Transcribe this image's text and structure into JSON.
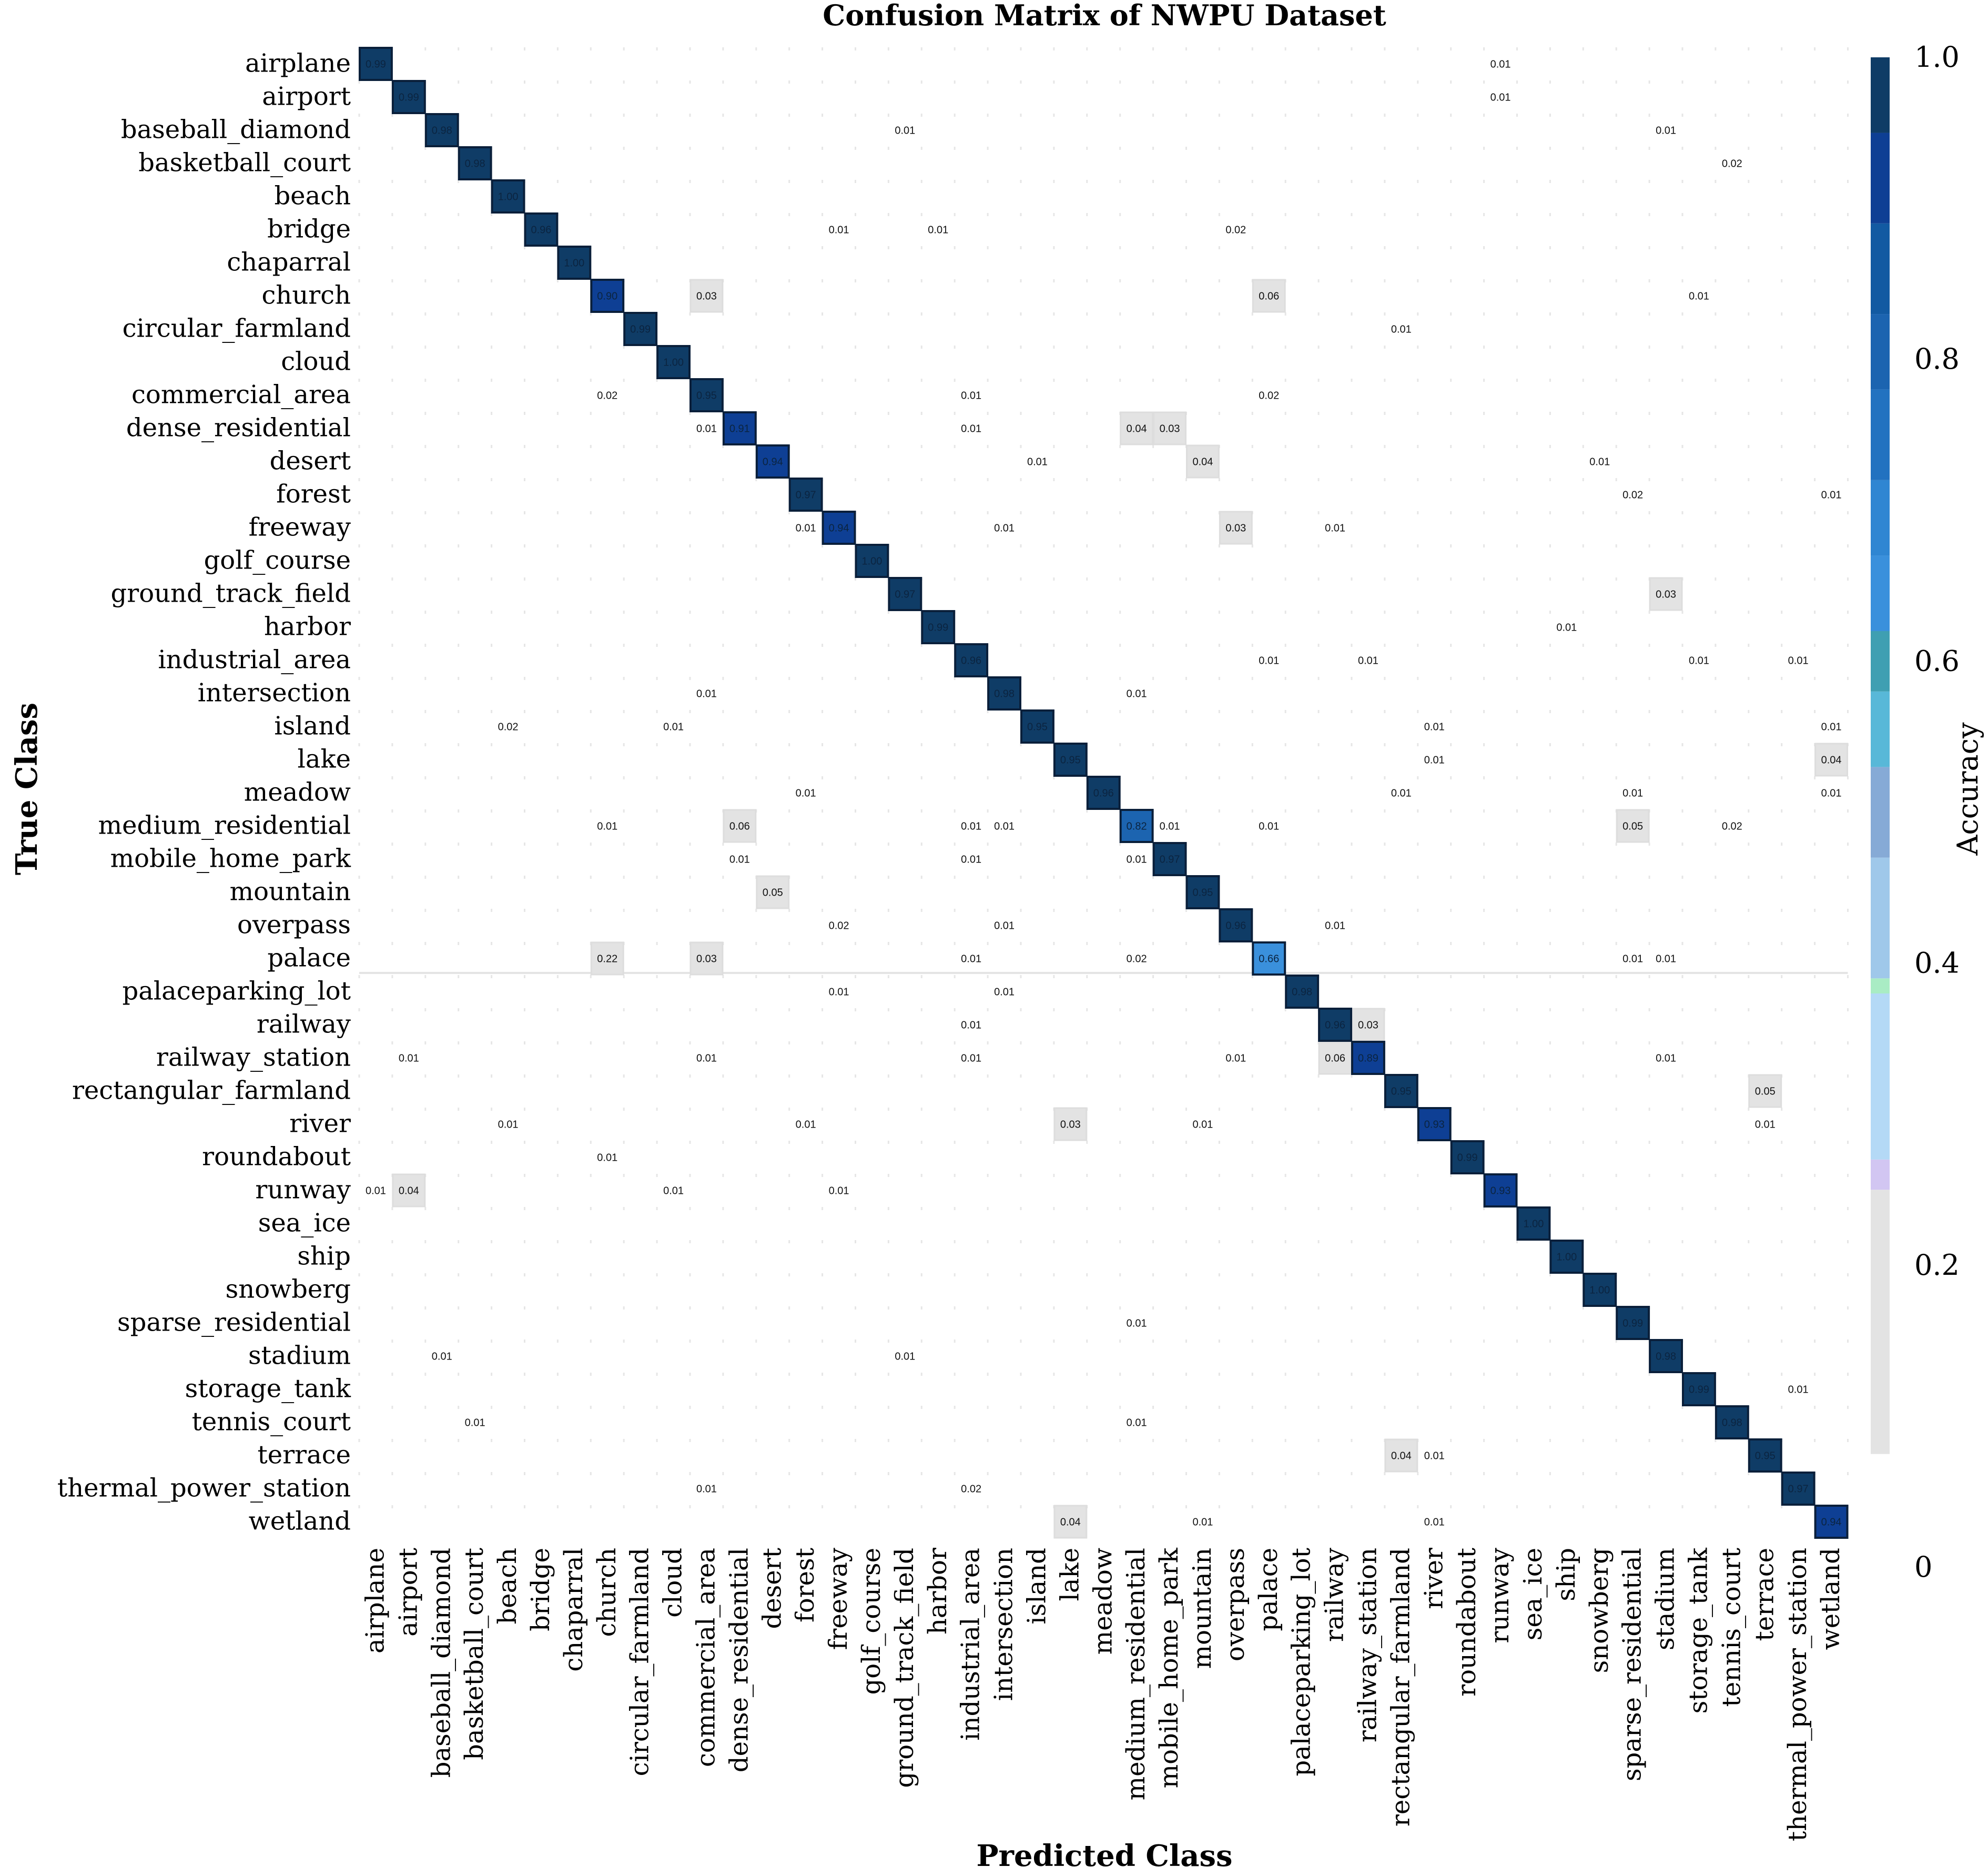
{
  "chart_data": {
    "type": "heatmap",
    "title": "Confusion Matrix of NWPU Dataset",
    "xlabel": "Predicted Class",
    "ylabel": "True Class",
    "classes": [
      "airplane",
      "airport",
      "baseball_diamond",
      "basketball_court",
      "beach",
      "bridge",
      "chaparral",
      "church",
      "circular_farmland",
      "cloud",
      "commercial_area",
      "dense_residential",
      "desert",
      "forest",
      "freeway",
      "golf_course",
      "ground_track_field",
      "harbor",
      "industrial_area",
      "intersection",
      "island",
      "lake",
      "meadow",
      "medium_residential",
      "mobile_home_park",
      "mountain",
      "overpass",
      "palace",
      "palaceparking_lot",
      "railway",
      "railway_station",
      "rectangular_farmland",
      "river",
      "roundabout",
      "runway",
      "sea_ice",
      "ship",
      "snowberg",
      "sparse_residential",
      "stadium",
      "storage_tank",
      "tennis_court",
      "terrace",
      "thermal_power_station",
      "wetland"
    ],
    "diagonal": [
      "0.99",
      "0.99",
      "0.98",
      "0.98",
      "1.00",
      "0.96",
      "1.00",
      "0.90",
      "0.99",
      "1.00",
      "0.95",
      "0.91",
      "0.94",
      "0.97",
      "0.94",
      "1.00",
      "0.97",
      "0.99",
      "0.96",
      "0.98",
      "0.95",
      "0.95",
      "0.96",
      "0.82",
      "0.97",
      "0.95",
      "0.96",
      "0.66",
      "0.98",
      "0.96",
      "0.89",
      "0.95",
      "0.93",
      "0.99",
      "0.93",
      "1.00",
      "1.00",
      "1.00",
      "0.99",
      "0.98",
      "0.99",
      "0.98",
      "0.95",
      "0.97",
      "0.94"
    ],
    "off_diagonal": [
      [
        0,
        34,
        "0.01"
      ],
      [
        1,
        34,
        "0.01"
      ],
      [
        2,
        16,
        "0.01"
      ],
      [
        2,
        39,
        "0.01"
      ],
      [
        3,
        41,
        "0.02"
      ],
      [
        5,
        14,
        "0.01"
      ],
      [
        5,
        17,
        "0.01"
      ],
      [
        5,
        26,
        "0.02"
      ],
      [
        7,
        10,
        "0.03"
      ],
      [
        7,
        27,
        "0.06"
      ],
      [
        7,
        40,
        "0.01"
      ],
      [
        8,
        31,
        "0.01"
      ],
      [
        10,
        7,
        "0.02"
      ],
      [
        10,
        18,
        "0.01"
      ],
      [
        10,
        27,
        "0.02"
      ],
      [
        11,
        10,
        "0.01"
      ],
      [
        11,
        18,
        "0.01"
      ],
      [
        11,
        23,
        "0.04"
      ],
      [
        11,
        24,
        "0.03"
      ],
      [
        12,
        20,
        "0.01"
      ],
      [
        12,
        25,
        "0.04"
      ],
      [
        12,
        37,
        "0.01"
      ],
      [
        13,
        38,
        "0.02"
      ],
      [
        13,
        44,
        "0.01"
      ],
      [
        14,
        13,
        "0.01"
      ],
      [
        14,
        19,
        "0.01"
      ],
      [
        14,
        26,
        "0.03"
      ],
      [
        14,
        29,
        "0.01"
      ],
      [
        16,
        39,
        "0.03"
      ],
      [
        17,
        36,
        "0.01"
      ],
      [
        18,
        27,
        "0.01"
      ],
      [
        18,
        30,
        "0.01"
      ],
      [
        18,
        40,
        "0.01"
      ],
      [
        18,
        43,
        "0.01"
      ],
      [
        19,
        10,
        "0.01"
      ],
      [
        19,
        23,
        "0.01"
      ],
      [
        20,
        4,
        "0.02"
      ],
      [
        20,
        9,
        "0.01"
      ],
      [
        20,
        32,
        "0.01"
      ],
      [
        20,
        44,
        "0.01"
      ],
      [
        21,
        32,
        "0.01"
      ],
      [
        21,
        44,
        "0.04"
      ],
      [
        22,
        13,
        "0.01"
      ],
      [
        22,
        31,
        "0.01"
      ],
      [
        22,
        38,
        "0.01"
      ],
      [
        22,
        44,
        "0.01"
      ],
      [
        23,
        7,
        "0.01"
      ],
      [
        23,
        11,
        "0.06"
      ],
      [
        23,
        18,
        "0.01"
      ],
      [
        23,
        19,
        "0.01"
      ],
      [
        23,
        24,
        "0.01"
      ],
      [
        23,
        27,
        "0.01"
      ],
      [
        23,
        38,
        "0.05"
      ],
      [
        23,
        41,
        "0.02"
      ],
      [
        24,
        11,
        "0.01"
      ],
      [
        24,
        18,
        "0.01"
      ],
      [
        24,
        23,
        "0.01"
      ],
      [
        25,
        12,
        "0.05"
      ],
      [
        26,
        14,
        "0.02"
      ],
      [
        26,
        19,
        "0.01"
      ],
      [
        26,
        29,
        "0.01"
      ],
      [
        27,
        7,
        "0.22"
      ],
      [
        27,
        10,
        "0.03"
      ],
      [
        27,
        18,
        "0.01"
      ],
      [
        27,
        23,
        "0.02"
      ],
      [
        27,
        38,
        "0.01"
      ],
      [
        27,
        39,
        "0.01"
      ],
      [
        28,
        14,
        "0.01"
      ],
      [
        28,
        19,
        "0.01"
      ],
      [
        29,
        18,
        "0.01"
      ],
      [
        29,
        30,
        "0.03"
      ],
      [
        30,
        1,
        "0.01"
      ],
      [
        30,
        10,
        "0.01"
      ],
      [
        30,
        18,
        "0.01"
      ],
      [
        30,
        26,
        "0.01"
      ],
      [
        30,
        29,
        "0.06"
      ],
      [
        30,
        39,
        "0.01"
      ],
      [
        31,
        42,
        "0.05"
      ],
      [
        32,
        4,
        "0.01"
      ],
      [
        32,
        13,
        "0.01"
      ],
      [
        32,
        21,
        "0.03"
      ],
      [
        32,
        25,
        "0.01"
      ],
      [
        32,
        42,
        "0.01"
      ],
      [
        33,
        7,
        "0.01"
      ],
      [
        34,
        0,
        "0.01"
      ],
      [
        34,
        1,
        "0.04"
      ],
      [
        34,
        9,
        "0.01"
      ],
      [
        34,
        14,
        "0.01"
      ],
      [
        38,
        23,
        "0.01"
      ],
      [
        39,
        2,
        "0.01"
      ],
      [
        39,
        16,
        "0.01"
      ],
      [
        40,
        43,
        "0.01"
      ],
      [
        41,
        3,
        "0.01"
      ],
      [
        41,
        23,
        "0.01"
      ],
      [
        42,
        31,
        "0.04"
      ],
      [
        42,
        32,
        "0.01"
      ],
      [
        43,
        10,
        "0.01"
      ],
      [
        43,
        18,
        "0.02"
      ],
      [
        44,
        21,
        "0.04"
      ],
      [
        44,
        25,
        "0.01"
      ],
      [
        44,
        32,
        "0.01"
      ]
    ],
    "value_range": [
      0,
      1
    ],
    "colorbar": {
      "label": "Accuracy",
      "ticks": [
        "0",
        "0.2",
        "0.4",
        "0.6",
        "0.8",
        "1.0"
      ],
      "tick_values": [
        0,
        0.2,
        0.4,
        0.6,
        0.8,
        1.0
      ],
      "range": [
        0.075,
        1.0
      ],
      "colors": [
        [
          0.075,
          "#e3e3e3"
        ],
        [
          0.25,
          "#d2c6f2"
        ],
        [
          0.27,
          "#b4d9f6"
        ],
        [
          0.38,
          "#a9ecc4"
        ],
        [
          0.39,
          "#9fc8ea"
        ],
        [
          0.47,
          "#86aad6"
        ],
        [
          0.53,
          "#58b8d8"
        ],
        [
          0.58,
          "#3f9fb2"
        ],
        [
          0.62,
          "#3a90dc"
        ],
        [
          0.67,
          "#2f86d2"
        ],
        [
          0.72,
          "#2272c0"
        ],
        [
          0.78,
          "#1c64b0"
        ],
        [
          0.83,
          "#125aa2"
        ],
        [
          0.89,
          "#0e3f94"
        ],
        [
          0.95,
          "#0f3c66"
        ]
      ]
    }
  }
}
